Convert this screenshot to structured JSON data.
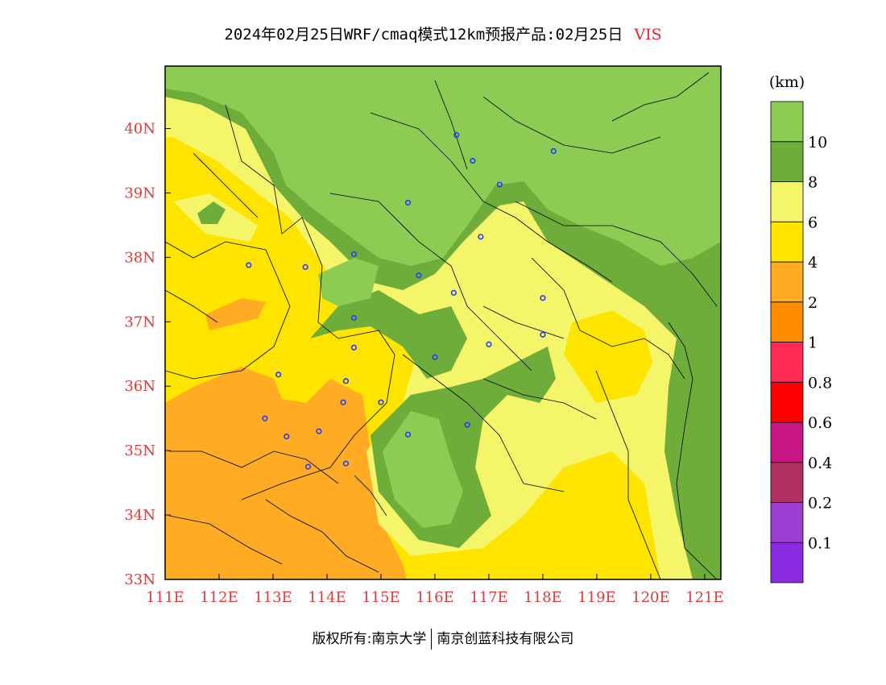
{
  "title": {
    "main": "2024年02月25日WRF/cmaq模式12km预报产品:02月25日",
    "variable": "VIS"
  },
  "map": {
    "x_axis": {
      "range": [
        111.0,
        121.3
      ],
      "ticks": [
        {
          "v": 111,
          "label": "111E"
        },
        {
          "v": 112,
          "label": "112E"
        },
        {
          "v": 113,
          "label": "113E"
        },
        {
          "v": 114,
          "label": "114E"
        },
        {
          "v": 115,
          "label": "115E"
        },
        {
          "v": 116,
          "label": "116E"
        },
        {
          "v": 117,
          "label": "117E"
        },
        {
          "v": 118,
          "label": "118E"
        },
        {
          "v": 119,
          "label": "119E"
        },
        {
          "v": 120,
          "label": "120E"
        },
        {
          "v": 121,
          "label": "121E"
        }
      ]
    },
    "y_axis": {
      "range": [
        33.0,
        40.97
      ],
      "ticks": [
        {
          "v": 33,
          "label": "33N"
        },
        {
          "v": 34,
          "label": "34N"
        },
        {
          "v": 35,
          "label": "35N"
        },
        {
          "v": 36,
          "label": "36N"
        },
        {
          "v": 37,
          "label": "37N"
        },
        {
          "v": 38,
          "label": "38N"
        },
        {
          "v": 39,
          "label": "39N"
        },
        {
          "v": 40,
          "label": "40N"
        }
      ]
    },
    "city_markers": [
      [
        116.4,
        39.9
      ],
      [
        116.7,
        39.5
      ],
      [
        118.2,
        39.65
      ],
      [
        117.2,
        39.13
      ],
      [
        115.5,
        38.85
      ],
      [
        116.85,
        38.32
      ],
      [
        114.5,
        38.05
      ],
      [
        113.6,
        37.85
      ],
      [
        112.55,
        37.88
      ],
      [
        115.7,
        37.72
      ],
      [
        116.35,
        37.45
      ],
      [
        118.0,
        37.37
      ],
      [
        114.5,
        37.06
      ],
      [
        118.0,
        36.8
      ],
      [
        117.0,
        36.65
      ],
      [
        114.5,
        36.6
      ],
      [
        116.0,
        36.45
      ],
      [
        113.1,
        36.18
      ],
      [
        114.35,
        36.08
      ],
      [
        115.0,
        35.75
      ],
      [
        114.3,
        35.75
      ],
      [
        112.85,
        35.5
      ],
      [
        116.6,
        35.4
      ],
      [
        113.85,
        35.3
      ],
      [
        113.25,
        35.22
      ],
      [
        115.5,
        35.25
      ],
      [
        114.35,
        34.8
      ],
      [
        113.65,
        34.75
      ]
    ]
  },
  "colorbar": {
    "unit": "(km)",
    "colors": [
      "#8a2be2",
      "#9b3fd0",
      "#b03060",
      "#c71585",
      "#ff0000",
      "#ff2a55",
      "#ff8c00",
      "#ffab23",
      "#ffe400",
      "#f5f56a",
      "#6fad3a",
      "#8ccc52"
    ],
    "labels": [
      "0.1",
      "0.2",
      "0.4",
      "0.6",
      "0.8",
      "1",
      "2",
      "4",
      "6",
      "8",
      "10"
    ]
  },
  "footer": {
    "left": "版权所有:南京大学",
    "right": "南京创蓝科技有限公司"
  }
}
